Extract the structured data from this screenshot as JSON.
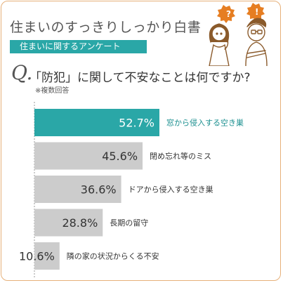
{
  "header": {
    "series_title": "住まいのすっきりしっかり白書",
    "subtitle": "住まいに関するアンケート",
    "question_mark": "Q.",
    "question": "「防犯」に関して不安なことは何ですか?",
    "note": "※複数回答"
  },
  "illustration": {
    "icon": "thinking-couple-illustration",
    "speech_icon": "speech-bubble-icon"
  },
  "colors": {
    "highlight_bar": "#2aa7a7",
    "bar": "#cccccc",
    "highlight_label": "#ffffff",
    "label": "#333333",
    "highlight_category": "#1a8f8f",
    "category": "#333333",
    "accent": "#e67e22"
  },
  "chart_data": {
    "type": "bar",
    "orientation": "horizontal",
    "categories": [
      "窓から侵入する空き巣",
      "閉め忘れ等のミス",
      "ドアから侵入する空き巣",
      "長期の留守",
      "隣の家の状況からくる不安"
    ],
    "values": [
      52.7,
      45.6,
      36.6,
      28.8,
      10.6
    ],
    "value_labels": [
      "52.7%",
      "45.6%",
      "36.6%",
      "28.8%",
      "10.6%"
    ],
    "highlighted_index": 0,
    "unit": "%",
    "xlim": [
      0,
      100
    ],
    "grid": false
  }
}
